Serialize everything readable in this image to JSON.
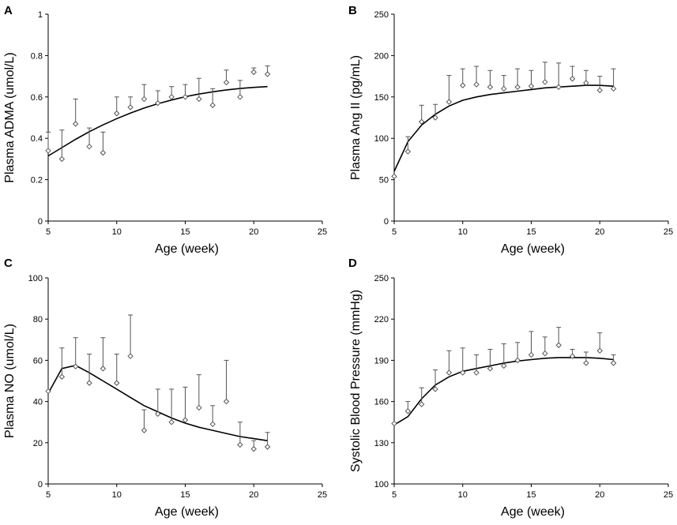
{
  "chart_data": [
    {
      "panel": "A",
      "type": "scatter",
      "xlabel": "Age (week)",
      "ylabel": "Plasma ADMA (umol/L)",
      "xlim": [
        5,
        25
      ],
      "ylim": [
        0,
        1
      ],
      "xticks": [
        5,
        10,
        15,
        20,
        25
      ],
      "yticks": [
        0,
        0.2,
        0.4,
        0.6,
        0.8,
        1
      ],
      "xtick_labels": [
        "5",
        "10",
        "15",
        "20",
        "25"
      ],
      "ytick_labels": [
        "0",
        "0.2",
        "0.4",
        "0.6",
        "0.8",
        "1"
      ],
      "x": [
        5,
        6,
        7,
        8,
        9,
        10,
        11,
        12,
        13,
        14,
        15,
        16,
        17,
        18,
        19,
        20,
        21
      ],
      "y": [
        0.34,
        0.3,
        0.47,
        0.36,
        0.33,
        0.52,
        0.55,
        0.59,
        0.57,
        0.6,
        0.6,
        0.59,
        0.56,
        0.67,
        0.6,
        0.72,
        0.71
      ],
      "err_upper": [
        0.43,
        0.44,
        0.59,
        0.45,
        0.43,
        0.6,
        0.6,
        0.66,
        0.63,
        0.65,
        0.66,
        0.69,
        0.64,
        0.73,
        0.68,
        0.74,
        0.75
      ],
      "fit": {
        "x": [
          5,
          6,
          7,
          8,
          9,
          10,
          11,
          12,
          13,
          14,
          15,
          16,
          17,
          18,
          19,
          20,
          21
        ],
        "y": [
          0.315,
          0.355,
          0.395,
          0.432,
          0.465,
          0.495,
          0.522,
          0.546,
          0.567,
          0.585,
          0.601,
          0.614,
          0.625,
          0.634,
          0.641,
          0.646,
          0.65
        ]
      }
    },
    {
      "panel": "B",
      "type": "scatter",
      "xlabel": "Age (week)",
      "ylabel": "Plasma Ang II (pg/mL)",
      "xlim": [
        5,
        25
      ],
      "ylim": [
        0,
        250
      ],
      "xticks": [
        5,
        10,
        15,
        20,
        25
      ],
      "yticks": [
        0,
        50,
        100,
        150,
        200,
        250
      ],
      "xtick_labels": [
        "5",
        "10",
        "15",
        "20",
        "25"
      ],
      "ytick_labels": [
        "0",
        "50",
        "100",
        "150",
        "200",
        "250"
      ],
      "x": [
        5,
        6,
        7,
        8,
        9,
        10,
        11,
        12,
        13,
        14,
        15,
        16,
        17,
        18,
        19,
        20,
        21
      ],
      "y": [
        54,
        84,
        120,
        125,
        144,
        164,
        165,
        162,
        160,
        162,
        163,
        168,
        162,
        172,
        167,
        158,
        160
      ],
      "err_upper": [
        54,
        102,
        140,
        141,
        176,
        184,
        187,
        182,
        176,
        184,
        182,
        192,
        191,
        187,
        182,
        175,
        184
      ],
      "fit": {
        "x": [
          5,
          6,
          7,
          8,
          9,
          10,
          11,
          12,
          13,
          14,
          15,
          16,
          17,
          18,
          19,
          20,
          21
        ],
        "y": [
          60,
          96,
          116,
          129,
          139,
          146,
          150,
          153,
          155,
          157,
          159,
          161,
          162,
          163,
          164,
          164,
          163
        ]
      }
    },
    {
      "panel": "C",
      "type": "scatter",
      "xlabel": "Age (week)",
      "ylabel": "Plasma NO (umol/L)",
      "xlim": [
        5,
        25
      ],
      "ylim": [
        0,
        100
      ],
      "xticks": [
        5,
        10,
        15,
        20,
        25
      ],
      "yticks": [
        0,
        20,
        40,
        60,
        80,
        100
      ],
      "xtick_labels": [
        "5",
        "10",
        "15",
        "20",
        "25"
      ],
      "ytick_labels": [
        "0",
        "20",
        "40",
        "60",
        "80",
        "100"
      ],
      "x": [
        5,
        6,
        7,
        8,
        9,
        10,
        11,
        12,
        13,
        14,
        15,
        16,
        17,
        18,
        19,
        20,
        21
      ],
      "y": [
        45,
        52,
        57,
        49,
        56,
        49,
        62,
        26,
        34,
        30,
        31,
        37,
        29,
        40,
        19,
        17,
        18
      ],
      "err_upper": [
        45,
        66,
        71,
        63,
        71,
        63,
        82,
        36,
        46,
        46,
        47,
        53,
        38,
        60,
        30,
        21,
        25
      ],
      "fit": {
        "x": [
          5,
          6,
          7,
          8,
          9,
          10,
          11,
          12,
          13,
          14,
          15,
          16,
          17,
          18,
          19,
          20,
          21
        ],
        "y": [
          44,
          56,
          57.5,
          54,
          50,
          46,
          42,
          38,
          35,
          32,
          29.5,
          27.5,
          26,
          24.5,
          23,
          22,
          21
        ]
      }
    },
    {
      "panel": "D",
      "type": "scatter",
      "xlabel": "Age (week)",
      "ylabel": "Systolic Blood Pressure (mmHg)",
      "xlim": [
        5,
        25
      ],
      "ylim": [
        100,
        250
      ],
      "xticks": [
        5,
        10,
        15,
        20,
        25
      ],
      "yticks": [
        100,
        130,
        160,
        190,
        220,
        250
      ],
      "xtick_labels": [
        "5",
        "10",
        "15",
        "20",
        "25"
      ],
      "ytick_labels": [
        "100",
        "130",
        "160",
        "190",
        "220",
        "250"
      ],
      "x": [
        5,
        6,
        7,
        8,
        9,
        10,
        11,
        12,
        13,
        14,
        15,
        16,
        17,
        18,
        19,
        20,
        21
      ],
      "y": [
        144,
        153,
        158,
        169,
        181,
        181,
        181,
        184,
        186,
        190,
        194,
        195,
        201,
        193,
        188,
        197,
        188
      ],
      "err_upper": [
        144,
        160,
        170,
        183,
        197,
        199,
        194,
        198,
        202,
        203,
        211,
        207,
        214,
        198,
        196,
        210,
        194
      ],
      "fit": {
        "x": [
          5,
          6,
          7,
          8,
          9,
          10,
          11,
          12,
          13,
          14,
          15,
          16,
          17,
          18,
          19,
          20,
          21
        ],
        "y": [
          143,
          149,
          162,
          172,
          178,
          182,
          184,
          186,
          188,
          189.5,
          190.5,
          191.5,
          192,
          192,
          192,
          191.5,
          190.5
        ]
      }
    }
  ]
}
